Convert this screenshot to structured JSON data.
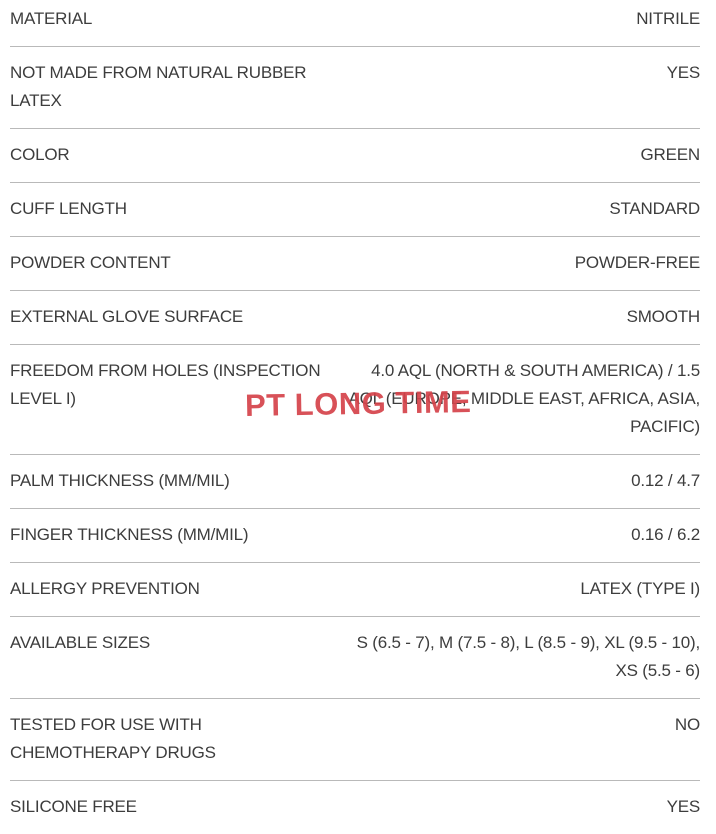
{
  "colors": {
    "text": "#3d3d3d",
    "divider": "#b9b9b9",
    "watermark": "#d5434a",
    "background": "#ffffff"
  },
  "watermark": {
    "text": "PT LONG TIME"
  },
  "spec_table": {
    "rows": [
      {
        "label": "MATERIAL",
        "value": "NITRILE"
      },
      {
        "label": "NOT MADE FROM NATURAL RUBBER LATEX",
        "value": "YES"
      },
      {
        "label": "COLOR",
        "value": "GREEN"
      },
      {
        "label": "CUFF LENGTH",
        "value": "STANDARD"
      },
      {
        "label": "POWDER CONTENT",
        "value": "POWDER-FREE"
      },
      {
        "label": "EXTERNAL GLOVE SURFACE",
        "value": "SMOOTH"
      },
      {
        "label": "FREEDOM FROM HOLES (INSPECTION LEVEL I)",
        "value": "4.0 AQL (NORTH & SOUTH AMERICA) / 1.5 AQL (EUROPE, MIDDLE EAST, AFRICA, ASIA, PACIFIC)"
      },
      {
        "label": "PALM THICKNESS (MM/MIL)",
        "value": "0.12 / 4.7"
      },
      {
        "label": "FINGER THICKNESS (MM/MIL)",
        "value": "0.16 / 6.2"
      },
      {
        "label": "ALLERGY PREVENTION",
        "value": "LATEX (TYPE I)"
      },
      {
        "label": "AVAILABLE SIZES",
        "value": "S (6.5 - 7), M (7.5 - 8), L (8.5 - 9), XL (9.5 - 10), XS (5.5 - 6)"
      },
      {
        "label": "TESTED FOR USE WITH CHEMOTHERAPY DRUGS",
        "value": "NO"
      },
      {
        "label": "SILICONE FREE",
        "value": "YES"
      }
    ]
  }
}
